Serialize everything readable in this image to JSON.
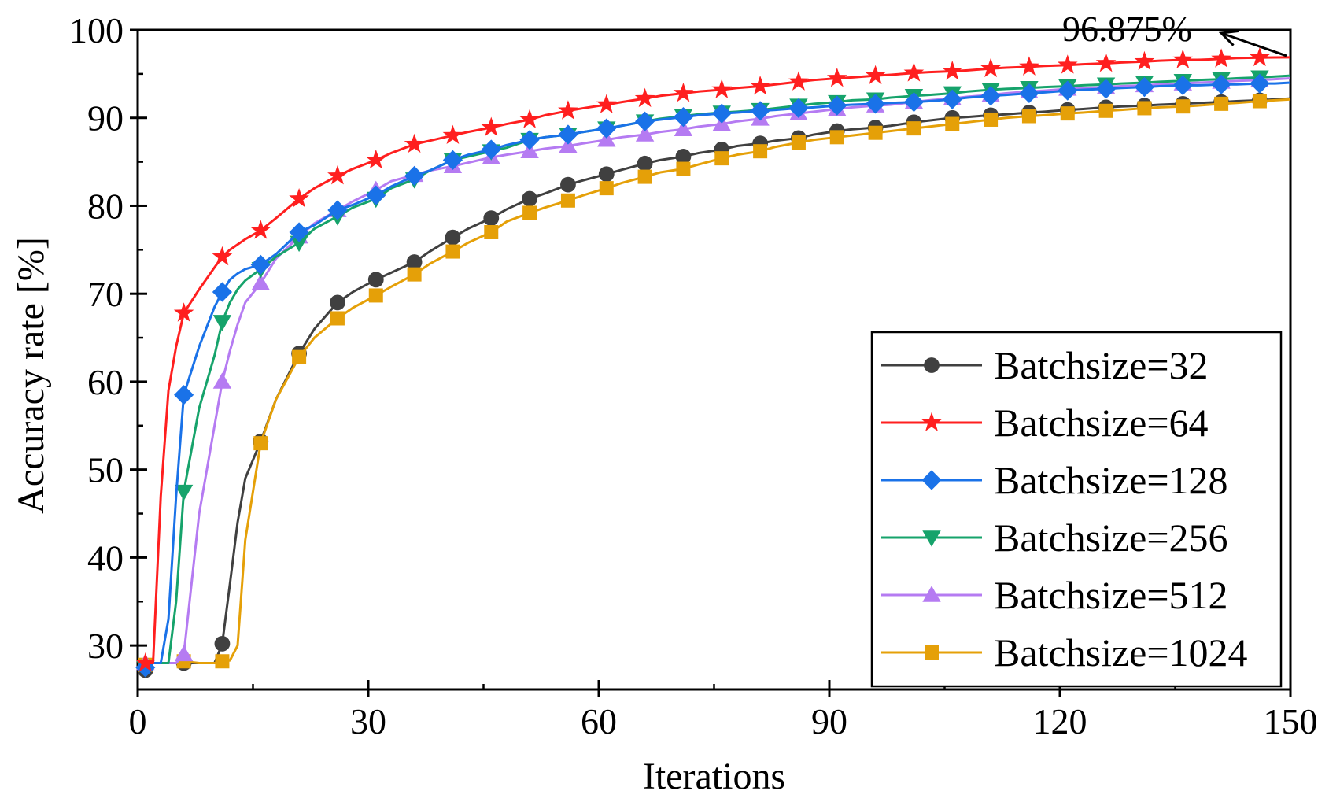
{
  "chart_data": {
    "type": "line",
    "title": "",
    "xlabel": "Iterations",
    "ylabel": "Accuracy rate [%]",
    "xlim": [
      0,
      150
    ],
    "ylim": [
      25,
      100
    ],
    "xticks": [
      0,
      30,
      60,
      90,
      120,
      150
    ],
    "yticks": [
      30,
      40,
      50,
      60,
      70,
      80,
      90,
      100
    ],
    "grid": false,
    "legend_position": "bottom-right",
    "annotation": {
      "text": "96.875%",
      "x": 150,
      "y": 96.875
    },
    "x": [
      1,
      2,
      3,
      4,
      5,
      6,
      8,
      10,
      11,
      12,
      13,
      14,
      16,
      18,
      21,
      23,
      26,
      28,
      31,
      33,
      36,
      38,
      41,
      43,
      46,
      48,
      51,
      53,
      56,
      58,
      61,
      63,
      66,
      68,
      71,
      73,
      76,
      78,
      81,
      83,
      86,
      88,
      91,
      93,
      96,
      98,
      101,
      103,
      106,
      108,
      111,
      113,
      116,
      118,
      121,
      123,
      126,
      128,
      131,
      133,
      136,
      138,
      141,
      143,
      146,
      148,
      150
    ],
    "series": [
      {
        "name": "Batchsize=32",
        "color": "#404040",
        "marker": "circle",
        "values": [
          27.2,
          28,
          28,
          28,
          28,
          28,
          28,
          28,
          30.2,
          37,
          44,
          49,
          53.2,
          58,
          63.2,
          66,
          69,
          70.2,
          71.6,
          72.4,
          73.6,
          74.8,
          76.4,
          77.4,
          78.6,
          79.6,
          80.8,
          81.4,
          82.4,
          82.9,
          83.6,
          84.1,
          84.8,
          85.2,
          85.6,
          86,
          86.4,
          86.8,
          87.1,
          87.4,
          87.7,
          88.1,
          88.5,
          88.7,
          88.9,
          89.1,
          89.5,
          89.7,
          90,
          90.1,
          90.3,
          90.4,
          90.6,
          90.7,
          90.9,
          91,
          91.2,
          91.3,
          91.4,
          91.5,
          91.6,
          91.7,
          91.8,
          91.9,
          92,
          92.1,
          92.2
        ]
      },
      {
        "name": "Batchsize=64",
        "color": "#ff1f1f",
        "marker": "star",
        "values": [
          28,
          28,
          47,
          59,
          64,
          67.8,
          70.5,
          73,
          74.2,
          75,
          75.6,
          76.2,
          77.2,
          78.6,
          80.8,
          82,
          83.4,
          84.2,
          85.2,
          86,
          87,
          87.4,
          88,
          88.4,
          88.9,
          89.3,
          89.8,
          90.3,
          90.8,
          91.1,
          91.5,
          91.8,
          92.2,
          92.5,
          92.8,
          93,
          93.2,
          93.4,
          93.6,
          93.8,
          94.1,
          94.3,
          94.5,
          94.6,
          94.8,
          94.9,
          95.1,
          95.2,
          95.3,
          95.4,
          95.6,
          95.7,
          95.8,
          95.9,
          96,
          96.1,
          96.2,
          96.3,
          96.4,
          96.5,
          96.6,
          96.6,
          96.7,
          96.8,
          96.85,
          96.87,
          96.875
        ]
      },
      {
        "name": "Batchsize=128",
        "color": "#1a72e8",
        "marker": "diamond",
        "values": [
          27.5,
          28,
          28,
          33,
          47,
          58.5,
          64,
          68.5,
          70.2,
          71.6,
          72.3,
          72.8,
          73.3,
          74.5,
          77,
          77.8,
          79.5,
          80.1,
          81.2,
          82.2,
          83.4,
          84,
          85.2,
          85.8,
          86.4,
          86.9,
          87.5,
          87.8,
          88.1,
          88.4,
          88.8,
          89.1,
          89.6,
          89.8,
          90.1,
          90.3,
          90.5,
          90.6,
          90.8,
          90.9,
          91.1,
          91.2,
          91.4,
          91.5,
          91.6,
          91.7,
          91.8,
          91.9,
          92.1,
          92.3,
          92.5,
          92.6,
          92.8,
          92.9,
          93.1,
          93.2,
          93.3,
          93.4,
          93.5,
          93.6,
          93.7,
          93.7,
          93.8,
          93.8,
          93.9,
          93.9,
          94
        ]
      },
      {
        "name": "Batchsize=256",
        "color": "#16a36b",
        "marker": "triangle-down",
        "values": [
          27.5,
          28,
          28,
          28,
          35,
          47.5,
          57,
          63,
          66.8,
          69,
          70.5,
          71.5,
          72.8,
          74.2,
          75.8,
          77.4,
          78.8,
          79.8,
          80.8,
          82,
          83,
          84,
          85.2,
          85.6,
          86.2,
          86.6,
          87.5,
          87.8,
          88.1,
          88.4,
          88.8,
          89.1,
          89.6,
          89.9,
          90.2,
          90.4,
          90.6,
          90.7,
          90.9,
          91.1,
          91.4,
          91.6,
          91.8,
          92,
          92.1,
          92.3,
          92.5,
          92.6,
          92.8,
          93,
          93.2,
          93.3,
          93.4,
          93.5,
          93.6,
          93.7,
          93.8,
          93.9,
          94,
          94.1,
          94.2,
          94.3,
          94.4,
          94.5,
          94.6,
          94.7,
          94.8
        ]
      },
      {
        "name": "Batchsize=512",
        "color": "#b57bf2",
        "marker": "triangle-up",
        "values": [
          28,
          28,
          28,
          28,
          28,
          29,
          45,
          55,
          60,
          63.5,
          66.5,
          69,
          71.2,
          74,
          76.5,
          78,
          79.5,
          80.5,
          81.8,
          82.8,
          83.5,
          84,
          84.5,
          84.9,
          85.5,
          85.8,
          86.2,
          86.5,
          86.8,
          87.1,
          87.5,
          87.8,
          88.1,
          88.4,
          88.7,
          89,
          89.3,
          89.6,
          89.9,
          90.2,
          90.5,
          90.7,
          91,
          91.2,
          91.4,
          91.5,
          91.8,
          92,
          92.2,
          92.4,
          92.6,
          92.8,
          93,
          93.1,
          93.3,
          93.4,
          93.5,
          93.6,
          93.7,
          93.8,
          93.9,
          94,
          94.1,
          94.2,
          94.3,
          94.4,
          94.5
        ]
      },
      {
        "name": "Batchsize=1024",
        "color": "#e5a008",
        "marker": "square",
        "values": [
          27.8,
          28,
          28,
          28,
          28,
          28.2,
          28,
          28,
          28.2,
          28.3,
          30,
          42,
          53,
          58,
          62.8,
          65,
          67.2,
          68.4,
          69.8,
          70.8,
          72.2,
          73.4,
          74.8,
          75.8,
          77,
          78.2,
          79.2,
          79.8,
          80.6,
          81.2,
          82,
          82.6,
          83.3,
          83.8,
          84.2,
          84.7,
          85.4,
          85.8,
          86.2,
          86.7,
          87.2,
          87.5,
          87.8,
          88,
          88.3,
          88.5,
          88.8,
          89,
          89.3,
          89.5,
          89.8,
          90,
          90.2,
          90.3,
          90.5,
          90.6,
          90.8,
          90.9,
          91.1,
          91.2,
          91.3,
          91.4,
          91.6,
          91.7,
          91.9,
          92,
          92.1
        ]
      }
    ]
  }
}
